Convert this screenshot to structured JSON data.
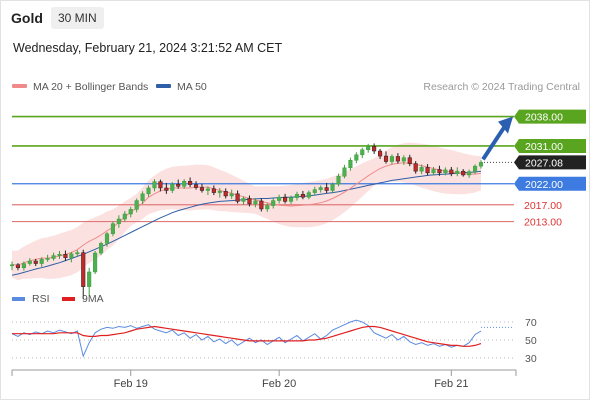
{
  "header": {
    "instrument": "Gold",
    "timeframe": "30 MIN",
    "datetime": "Wednesday, February 21, 2024 3:21:52 AM CET"
  },
  "chart_data": [
    {
      "type": "line",
      "title": "",
      "legend": [
        {
          "name": "MA 20 + Bollinger Bands",
          "color": "#f08a8a"
        },
        {
          "name": "MA 50",
          "color": "#2f5fa7"
        }
      ],
      "credit": "Research © 2024 Trading Central",
      "ylim": [
        1996.7,
        2042.9
      ],
      "grid": false,
      "legend_position": "top-left",
      "levels": [
        {
          "value": 2038.0,
          "label": "2038.00",
          "color": "#5aa51f",
          "kind": "resistance"
        },
        {
          "value": 2031.0,
          "label": "2031.00",
          "color": "#5aa51f",
          "kind": "resistance"
        },
        {
          "value": 2027.08,
          "label": "2027.08",
          "color": "#222222",
          "kind": "last"
        },
        {
          "value": 2022.0,
          "label": "2022.00",
          "color": "#3d7be0",
          "kind": "pivot"
        },
        {
          "value": 2017.0,
          "label": "2017.00",
          "color": "#e07a7a",
          "kind": "support"
        },
        {
          "value": 2013.0,
          "label": "2013.00",
          "color": "#e07a7a",
          "kind": "support"
        }
      ],
      "x_ticks": [
        "Feb 19",
        "Feb 20",
        "Feb 21"
      ],
      "series": [
        {
          "name": "MA 20 + Bollinger Bands",
          "values": [
            2002.8,
            2002.6,
            2003.2,
            2003.6,
            2004.0,
            2004.3,
            2004.3,
            2004.5,
            2004.8,
            2005.2,
            2005.6,
            2006.3,
            2007.4,
            2008.3,
            2009.0,
            2009.8,
            2010.8,
            2011.6,
            2012.8,
            2014.1,
            2015.3,
            2016.2,
            2017.4,
            2018.8,
            2019.6,
            2020.3,
            2020.7,
            2021.0,
            2021.0,
            2021.0,
            2021.0,
            2021.2,
            2021.2,
            2021.2,
            2020.8,
            2020.4,
            2020.1,
            2019.7,
            2019.3,
            2018.9,
            2018.5,
            2018.1,
            2017.8,
            2017.5,
            2017.2,
            2016.9,
            2016.8,
            2016.7,
            2016.8,
            2016.9,
            2017.0,
            2017.2,
            2017.5,
            2017.9,
            2018.5,
            2019.2,
            2020.0,
            2020.9,
            2021.9,
            2022.9,
            2023.9,
            2024.8,
            2025.6,
            2026.2,
            2026.6,
            2026.9,
            2027.0,
            2026.9,
            2026.6,
            2026.3,
            2026.0,
            2025.6,
            2025.3,
            2025.0,
            2024.8,
            2024.6,
            2024.4,
            2024.3,
            2024.3,
            2024.5
          ]
        },
        {
          "name": "MA 50",
          "values": [
            2000.2,
            2000.5,
            2000.9,
            2001.3,
            2001.7,
            2002.0,
            2002.4,
            2002.8,
            2003.2,
            2003.7,
            2004.2,
            2004.7,
            2005.2,
            2005.8,
            2006.4,
            2007.0,
            2007.6,
            2008.3,
            2009.0,
            2009.7,
            2010.4,
            2011.1,
            2011.8,
            2012.5,
            2013.2,
            2013.9,
            2014.5,
            2015.1,
            2015.6,
            2016.0,
            2016.4,
            2016.8,
            2017.1,
            2017.4,
            2017.6,
            2017.8,
            2017.9,
            2018.0,
            2018.1,
            2018.2,
            2018.3,
            2018.4,
            2018.5,
            2018.5,
            2018.6,
            2018.7,
            2018.8,
            2018.8,
            2018.9,
            2019.0,
            2019.1,
            2019.3,
            2019.5,
            2019.7,
            2019.9,
            2020.1,
            2020.4,
            2020.7,
            2021.0,
            2021.3,
            2021.6,
            2021.9,
            2022.2,
            2022.5,
            2022.8,
            2023.0,
            2023.2,
            2023.4,
            2023.6,
            2023.8,
            2024.0,
            2024.1,
            2024.2,
            2024.3,
            2024.4,
            2024.5,
            2024.6,
            2024.7,
            2024.8,
            2025.0
          ]
        }
      ],
      "ohlc": [
        [
          2002.5,
          2003.5,
          2001.4,
          2002.7
        ],
        [
          2002.7,
          2003.1,
          2001.4,
          2002.0
        ],
        [
          2002.0,
          2003.5,
          2001.3,
          2003.0
        ],
        [
          2003.0,
          2004.3,
          2002.5,
          2003.6
        ],
        [
          2003.6,
          2004.1,
          2002.4,
          2003.0
        ],
        [
          2003.0,
          2004.5,
          2002.2,
          2004.0
        ],
        [
          2004.0,
          2005.1,
          2003.4,
          2004.2
        ],
        [
          2004.2,
          2005.6,
          2003.7,
          2004.9
        ],
        [
          2004.9,
          2006.0,
          2004.1,
          2005.2
        ],
        [
          2005.2,
          2006.1,
          2003.6,
          2004.4
        ],
        [
          2004.4,
          2005.8,
          2003.3,
          2005.3
        ],
        [
          2005.3,
          2006.2,
          2004.6,
          2005.6
        ],
        [
          2005.6,
          2006.3,
          1994.5,
          1997.5
        ],
        [
          1997.5,
          2002.0,
          1995.5,
          2001.0
        ],
        [
          2001.0,
          2006.0,
          2000.5,
          2005.5
        ],
        [
          2005.5,
          2008.2,
          2005.0,
          2007.8
        ],
        [
          2007.8,
          2010.5,
          2007.0,
          2010.1
        ],
        [
          2010.1,
          2013.0,
          2009.5,
          2012.5
        ],
        [
          2012.5,
          2014.5,
          2011.5,
          2013.6
        ],
        [
          2013.6,
          2015.5,
          2013.0,
          2014.8
        ],
        [
          2014.8,
          2016.5,
          2014.0,
          2015.9
        ],
        [
          2015.9,
          2018.5,
          2015.2,
          2018.0
        ],
        [
          2018.0,
          2020.2,
          2017.2,
          2019.6
        ],
        [
          2019.6,
          2021.6,
          2018.9,
          2021.0
        ],
        [
          2021.0,
          2023.1,
          2020.2,
          2022.5
        ],
        [
          2022.5,
          2023.0,
          2020.2,
          2021.0
        ],
        [
          2021.0,
          2022.2,
          2019.6,
          2020.4
        ],
        [
          2020.4,
          2022.4,
          2019.8,
          2021.9
        ],
        [
          2021.9,
          2023.0,
          2020.8,
          2021.4
        ],
        [
          2021.4,
          2023.1,
          2020.8,
          2022.6
        ],
        [
          2022.6,
          2023.5,
          2021.2,
          2021.8
        ],
        [
          2021.8,
          2022.6,
          2020.6,
          2021.1
        ],
        [
          2021.1,
          2022.0,
          2019.9,
          2020.4
        ],
        [
          2020.4,
          2021.4,
          2019.3,
          2020.8
        ],
        [
          2020.8,
          2021.6,
          2019.3,
          2019.9
        ],
        [
          2019.9,
          2021.0,
          2018.7,
          2020.2
        ],
        [
          2020.2,
          2020.9,
          2018.5,
          2019.1
        ],
        [
          2019.1,
          2020.6,
          2018.4,
          2019.6
        ],
        [
          2019.6,
          2020.4,
          2017.3,
          2017.8
        ],
        [
          2017.8,
          2019.0,
          2017.0,
          2018.5
        ],
        [
          2018.5,
          2019.2,
          2016.6,
          2017.2
        ],
        [
          2017.2,
          2018.6,
          2016.4,
          2017.9
        ],
        [
          2017.9,
          2018.5,
          2015.4,
          2016.0
        ],
        [
          2016.0,
          2017.4,
          2015.3,
          2016.8
        ],
        [
          2016.8,
          2018.5,
          2016.1,
          2018.0
        ],
        [
          2018.0,
          2019.4,
          2017.3,
          2018.8
        ],
        [
          2018.8,
          2019.6,
          2017.3,
          2017.8
        ],
        [
          2017.8,
          2019.2,
          2017.2,
          2018.7
        ],
        [
          2018.7,
          2020.1,
          2018.0,
          2019.5
        ],
        [
          2019.5,
          2020.3,
          2018.3,
          2018.8
        ],
        [
          2018.8,
          2020.4,
          2018.3,
          2019.9
        ],
        [
          2019.9,
          2021.3,
          2019.3,
          2020.6
        ],
        [
          2020.6,
          2021.6,
          2019.9,
          2021.1
        ],
        [
          2021.1,
          2022.2,
          2019.8,
          2020.4
        ],
        [
          2020.4,
          2022.3,
          2019.7,
          2021.9
        ],
        [
          2021.9,
          2024.4,
          2021.4,
          2023.8
        ],
        [
          2023.8,
          2026.5,
          2023.3,
          2025.8
        ],
        [
          2025.8,
          2028.2,
          2025.1,
          2027.6
        ],
        [
          2027.6,
          2029.5,
          2026.9,
          2028.9
        ],
        [
          2028.9,
          2030.6,
          2028.1,
          2030.1
        ],
        [
          2030.1,
          2031.5,
          2029.4,
          2030.9
        ],
        [
          2030.9,
          2031.6,
          2029.1,
          2029.8
        ],
        [
          2029.8,
          2030.3,
          2027.9,
          2028.6
        ],
        [
          2028.6,
          2029.7,
          2026.8,
          2027.3
        ],
        [
          2027.3,
          2029.0,
          2026.6,
          2028.5
        ],
        [
          2028.5,
          2029.3,
          2026.8,
          2027.4
        ],
        [
          2027.4,
          2028.8,
          2026.5,
          2028.2
        ],
        [
          2028.2,
          2028.9,
          2026.2,
          2026.8
        ],
        [
          2026.8,
          2027.4,
          2024.4,
          2025.0
        ],
        [
          2025.0,
          2026.6,
          2024.3,
          2025.9
        ],
        [
          2025.9,
          2026.7,
          2024.0,
          2024.6
        ],
        [
          2024.6,
          2026.0,
          2024.0,
          2025.4
        ],
        [
          2025.4,
          2026.3,
          2023.9,
          2024.6
        ],
        [
          2024.6,
          2025.9,
          2024.0,
          2025.3
        ],
        [
          2025.3,
          2026.0,
          2023.8,
          2024.4
        ],
        [
          2024.4,
          2025.9,
          2023.8,
          2025.0
        ],
        [
          2025.0,
          2025.5,
          2023.7,
          2024.1
        ],
        [
          2024.1,
          2025.4,
          2023.4,
          2024.9
        ],
        [
          2024.9,
          2026.6,
          2024.3,
          2026.2
        ],
        [
          2026.2,
          2027.6,
          2025.6,
          2027.08
        ]
      ],
      "projection": {
        "from": 2027.1,
        "to": 2038.0
      }
    },
    {
      "type": "line",
      "title": "",
      "legend": [
        {
          "name": "RSI",
          "color": "#5b8be0"
        },
        {
          "name": "9MA",
          "color": "#e02020"
        }
      ],
      "ylim": [
        20,
        80
      ],
      "y_ticks": [
        70,
        50,
        30
      ],
      "series": [
        {
          "name": "RSI",
          "values": [
            57,
            54,
            58,
            56,
            59,
            57,
            60,
            58,
            61,
            59,
            57,
            60,
            32,
            47,
            58,
            62,
            64,
            63,
            65,
            64,
            66,
            63,
            65,
            67,
            62,
            60,
            58,
            61,
            55,
            58,
            52,
            56,
            50,
            54,
            48,
            51,
            46,
            50,
            44,
            48,
            52,
            47,
            50,
            45,
            49,
            53,
            47,
            51,
            55,
            49,
            53,
            57,
            51,
            55,
            61,
            64,
            67,
            70,
            72,
            70,
            66,
            58,
            55,
            52,
            56,
            50,
            54,
            48,
            45,
            47,
            44,
            46,
            43,
            45,
            42,
            44,
            43,
            47,
            56,
            60
          ]
        },
        {
          "name": "9MA",
          "values": [
            57,
            57,
            57,
            57,
            57,
            57,
            57,
            57,
            58,
            58,
            58,
            58,
            55,
            54,
            54,
            55,
            55,
            56,
            57,
            58,
            60,
            62,
            63,
            64,
            65,
            64,
            63,
            62,
            61,
            60,
            59,
            58,
            57,
            56,
            55,
            54,
            53,
            52,
            51,
            50,
            49,
            49,
            49,
            49,
            49,
            49,
            49,
            49,
            49,
            49,
            50,
            50,
            51,
            52,
            54,
            56,
            58,
            60,
            62,
            64,
            65,
            65,
            64,
            62,
            60,
            58,
            56,
            54,
            52,
            50,
            48,
            47,
            46,
            45,
            44,
            44,
            43,
            43,
            44,
            46
          ]
        }
      ]
    }
  ]
}
